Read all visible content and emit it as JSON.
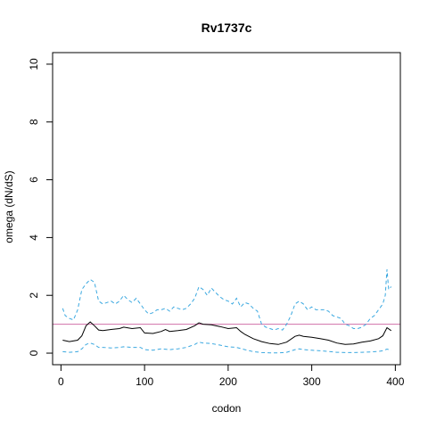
{
  "chart_data": {
    "type": "line",
    "title": "Rv1737c",
    "xlabel": "codon",
    "ylabel": "omega (dN/dS)",
    "xlim": [
      -10,
      406
    ],
    "ylim": [
      -0.4,
      10.4
    ],
    "x_ticks": [
      0,
      100,
      200,
      300,
      400
    ],
    "y_ticks": [
      0,
      2,
      4,
      6,
      8,
      10
    ],
    "reference_line": {
      "y": 1,
      "color": "#d070a8"
    },
    "grid": false,
    "legend": "none",
    "series": [
      {
        "role": "estimate",
        "color": "#000000",
        "dash": "solid",
        "x": [
          2,
          10,
          20,
          25,
          30,
          35,
          40,
          45,
          50,
          60,
          70,
          75,
          85,
          95,
          100,
          110,
          120,
          125,
          130,
          140,
          150,
          160,
          165,
          170,
          180,
          190,
          200,
          210,
          215,
          220,
          230,
          240,
          250,
          260,
          270,
          280,
          285,
          290,
          300,
          310,
          320,
          330,
          340,
          350,
          360,
          370,
          380,
          385,
          390,
          395
        ],
        "y": [
          0.45,
          0.4,
          0.45,
          0.6,
          0.95,
          1.08,
          0.95,
          0.8,
          0.78,
          0.82,
          0.85,
          0.9,
          0.85,
          0.88,
          0.7,
          0.68,
          0.75,
          0.82,
          0.75,
          0.78,
          0.82,
          0.95,
          1.05,
          1.0,
          0.98,
          0.92,
          0.85,
          0.88,
          0.75,
          0.65,
          0.5,
          0.4,
          0.33,
          0.3,
          0.38,
          0.58,
          0.62,
          0.58,
          0.55,
          0.5,
          0.45,
          0.35,
          0.3,
          0.32,
          0.38,
          0.42,
          0.5,
          0.6,
          0.88,
          0.78
        ]
      },
      {
        "role": "upper-bound",
        "color": "#3aa8e0",
        "dash": "dashed",
        "x": [
          2,
          5,
          10,
          15,
          20,
          25,
          30,
          35,
          40,
          45,
          50,
          55,
          60,
          65,
          70,
          75,
          80,
          85,
          90,
          95,
          100,
          105,
          110,
          115,
          120,
          125,
          130,
          135,
          140,
          145,
          150,
          155,
          160,
          165,
          170,
          175,
          180,
          185,
          190,
          195,
          200,
          205,
          210,
          215,
          220,
          225,
          230,
          235,
          240,
          245,
          250,
          255,
          260,
          265,
          270,
          275,
          280,
          285,
          290,
          295,
          300,
          305,
          310,
          315,
          320,
          325,
          330,
          335,
          340,
          345,
          350,
          355,
          360,
          365,
          370,
          375,
          380,
          385,
          388,
          390,
          392,
          395
        ],
        "y": [
          1.55,
          1.3,
          1.2,
          1.15,
          1.5,
          2.2,
          2.4,
          2.55,
          2.45,
          1.8,
          1.7,
          1.75,
          1.8,
          1.7,
          1.8,
          2.0,
          1.85,
          1.75,
          1.9,
          1.7,
          1.5,
          1.35,
          1.4,
          1.5,
          1.5,
          1.55,
          1.45,
          1.6,
          1.55,
          1.5,
          1.55,
          1.7,
          1.9,
          2.3,
          2.2,
          2.0,
          2.25,
          2.1,
          1.95,
          1.85,
          1.8,
          1.7,
          1.9,
          1.6,
          1.75,
          1.7,
          1.55,
          1.45,
          1.0,
          0.9,
          0.85,
          0.8,
          0.85,
          0.8,
          1.0,
          1.3,
          1.7,
          1.8,
          1.7,
          1.5,
          1.6,
          1.5,
          1.5,
          1.5,
          1.45,
          1.3,
          1.25,
          1.2,
          1.0,
          0.95,
          0.85,
          0.85,
          0.9,
          1.0,
          1.2,
          1.3,
          1.5,
          1.7,
          2.0,
          2.9,
          2.2,
          2.3
        ]
      },
      {
        "role": "lower-bound",
        "color": "#3aa8e0",
        "dash": "dashed",
        "x": [
          2,
          10,
          20,
          25,
          30,
          35,
          40,
          45,
          50,
          60,
          70,
          75,
          85,
          95,
          100,
          110,
          120,
          130,
          140,
          150,
          160,
          165,
          170,
          180,
          190,
          200,
          210,
          220,
          230,
          240,
          250,
          260,
          270,
          280,
          285,
          290,
          300,
          310,
          320,
          330,
          340,
          350,
          360,
          370,
          380,
          385,
          390,
          395
        ],
        "y": [
          0.05,
          0.03,
          0.05,
          0.15,
          0.3,
          0.35,
          0.3,
          0.2,
          0.2,
          0.18,
          0.2,
          0.22,
          0.2,
          0.2,
          0.12,
          0.1,
          0.15,
          0.12,
          0.15,
          0.2,
          0.3,
          0.38,
          0.35,
          0.33,
          0.28,
          0.22,
          0.2,
          0.12,
          0.05,
          0.02,
          0.01,
          0.01,
          0.03,
          0.12,
          0.15,
          0.12,
          0.1,
          0.08,
          0.06,
          0.03,
          0.02,
          0.02,
          0.03,
          0.04,
          0.06,
          0.08,
          0.14,
          0.1
        ]
      }
    ]
  }
}
